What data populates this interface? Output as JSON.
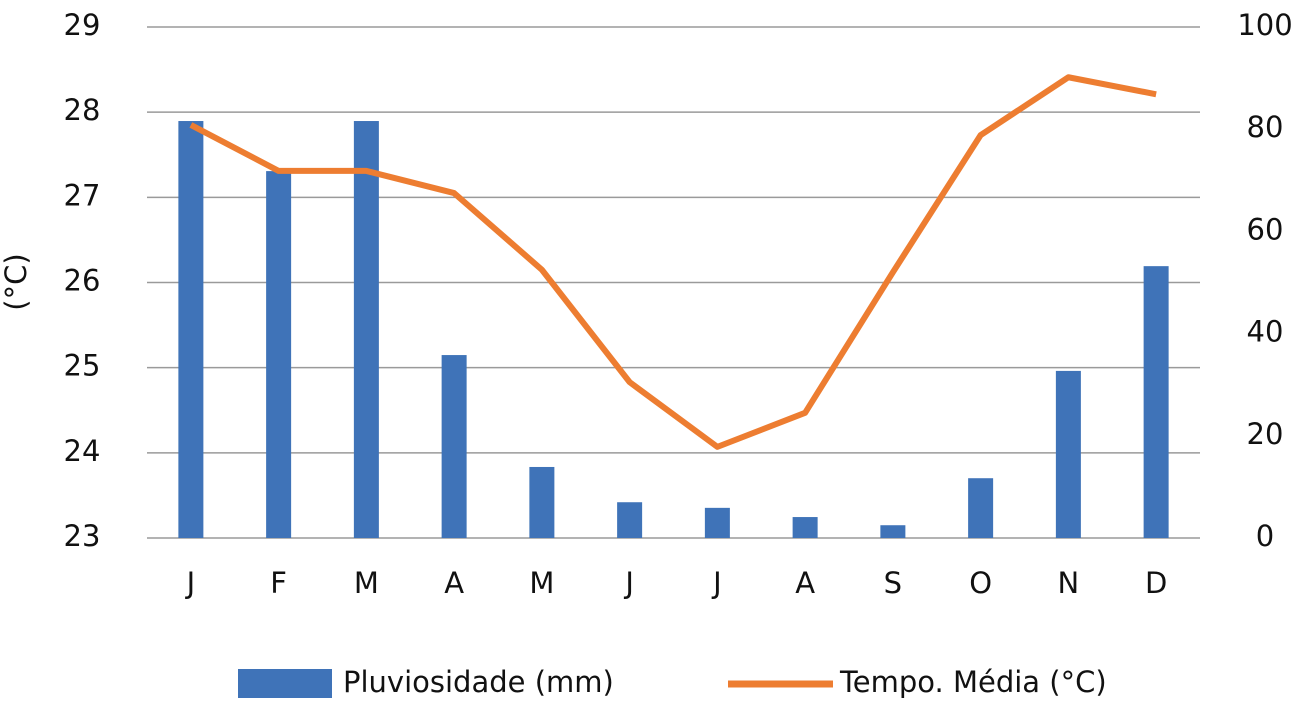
{
  "chart_data": {
    "type": "bar-line",
    "y_label": "(°C)",
    "categories": [
      "J",
      "F",
      "M",
      "A",
      "M",
      "J",
      "J",
      "A",
      "S",
      "O",
      "N",
      "D"
    ],
    "series": [
      {
        "name": "Pluviosidade (mm)",
        "type": "bar",
        "axis": "y2",
        "color": "#3f73b8",
        "values": [
          81.6,
          71.8,
          81.6,
          35.8,
          13.9,
          7.0,
          5.9,
          4.1,
          2.5,
          11.7,
          32.7,
          53.2
        ]
      },
      {
        "name": "Tempo. Média (°C)",
        "type": "line",
        "axis": "y",
        "color": "#ed7d31",
        "values": [
          27.85,
          27.31,
          27.31,
          27.05,
          26.15,
          24.83,
          24.07,
          24.47,
          26.12,
          27.73,
          28.41,
          28.21
        ]
      }
    ],
    "ylim": [
      23,
      29
    ],
    "yticks": [
      23,
      24,
      25,
      26,
      27,
      28,
      29
    ],
    "y2lim": [
      0,
      100
    ],
    "y2ticks": [
      0,
      20,
      40,
      60,
      80,
      100
    ],
    "grid": true,
    "legend": "bottom"
  }
}
